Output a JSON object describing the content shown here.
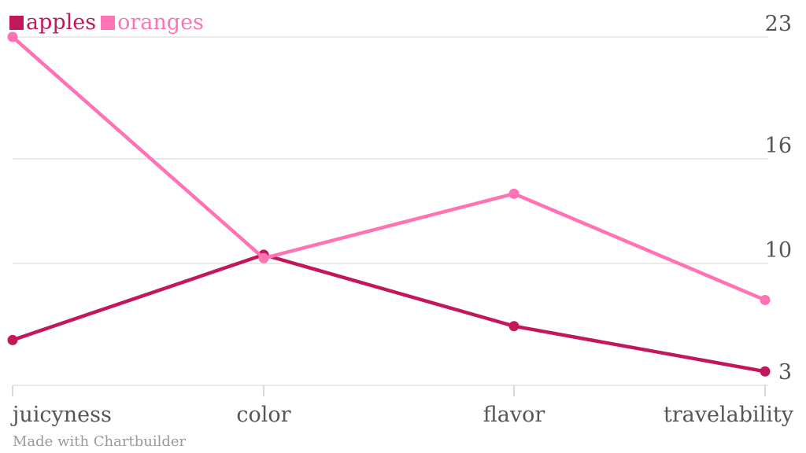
{
  "chart_data": {
    "type": "line",
    "categories": [
      "juicyness",
      "color",
      "flavor",
      "travelability"
    ],
    "series": [
      {
        "name": "apples",
        "color": "#c2185b",
        "values": [
          5.6,
          10.5,
          6.4,
          3.8
        ]
      },
      {
        "name": "oranges",
        "color": "#ff73b4",
        "values": [
          23,
          10.3,
          14,
          7.9
        ]
      }
    ],
    "yticks": [
      3,
      10,
      16,
      23
    ],
    "ylim": [
      3,
      23
    ],
    "grid": true,
    "legend_position": "top-left",
    "y_axis_position": "right"
  },
  "credit": "Made with Chartbuilder"
}
